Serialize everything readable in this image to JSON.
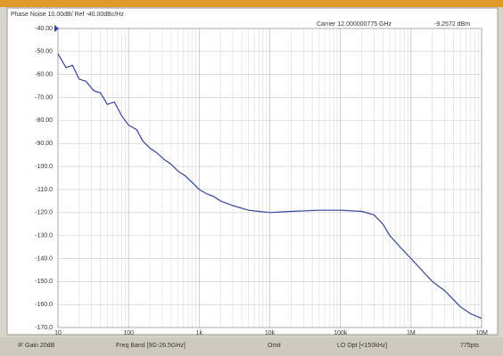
{
  "chart_data": {
    "type": "line",
    "title": "Phase Noise 10.00dB/ Ref -40.00dBc/Hz",
    "annotations": [
      "Carrier 12.000000775 GHz",
      "-9.2572 dBm"
    ],
    "x": [
      10,
      13,
      16,
      20,
      25,
      32,
      40,
      50,
      63,
      80,
      100,
      130,
      160,
      200,
      250,
      320,
      400,
      500,
      630,
      800,
      1000,
      1300,
      1600,
      2000,
      3000,
      5000,
      7000,
      10000,
      20000,
      50000,
      100000,
      200000,
      300000,
      400000,
      500000,
      700000,
      1000000,
      2000000,
      3000000,
      5000000,
      7000000,
      10000000
    ],
    "values": [
      -51,
      -57,
      -56,
      -62,
      -63,
      -67,
      -68,
      -73,
      -72,
      -78,
      -82,
      -84,
      -89,
      -92,
      -94,
      -97,
      -99,
      -102,
      -104,
      -107,
      -110,
      -112,
      -113,
      -115,
      -117,
      -119,
      -119.5,
      -120,
      -119.5,
      -119,
      -119,
      -119.5,
      -121,
      -125,
      -130,
      -135,
      -140,
      -150,
      -154,
      -161,
      -164,
      -166
    ],
    "color": "#34449a",
    "xscale": "log",
    "xlim": [
      10,
      10000000
    ],
    "xticks": [
      10,
      100,
      {
        "value": 1000,
        "label": "1k"
      },
      {
        "value": 10000,
        "label": "10k"
      },
      {
        "value": 100000,
        "label": "100k"
      },
      {
        "value": 1000000,
        "label": "1M"
      },
      {
        "value": 10000000,
        "label": "10M"
      }
    ],
    "ylim": [
      -170,
      -40
    ],
    "yticks": [
      {
        "value": -40,
        "label": "-40.00"
      },
      {
        "value": -50,
        "label": "-50.00"
      },
      {
        "value": -60,
        "label": "-60.00"
      },
      {
        "value": -70,
        "label": "-70.00"
      },
      {
        "value": -80,
        "label": "-80.00"
      },
      {
        "value": -90,
        "label": "-90.00"
      },
      {
        "value": -100,
        "label": "-100.0"
      },
      {
        "value": -110,
        "label": "-110.0"
      },
      {
        "value": -120,
        "label": "-120.0"
      },
      {
        "value": -130,
        "label": "-130.0"
      },
      {
        "value": -140,
        "label": "-140.0"
      },
      {
        "value": -150,
        "label": "-150.0"
      },
      {
        "value": -160,
        "label": "-160.0"
      },
      {
        "value": -170,
        "label": "-170.0"
      }
    ],
    "grid": true
  },
  "status_bar": [
    "IF Gain 20dB",
    "Freq Band [9G-26.5GHz]",
    "Omit",
    "LO Opt [<150kHz]",
    "775pts"
  ]
}
